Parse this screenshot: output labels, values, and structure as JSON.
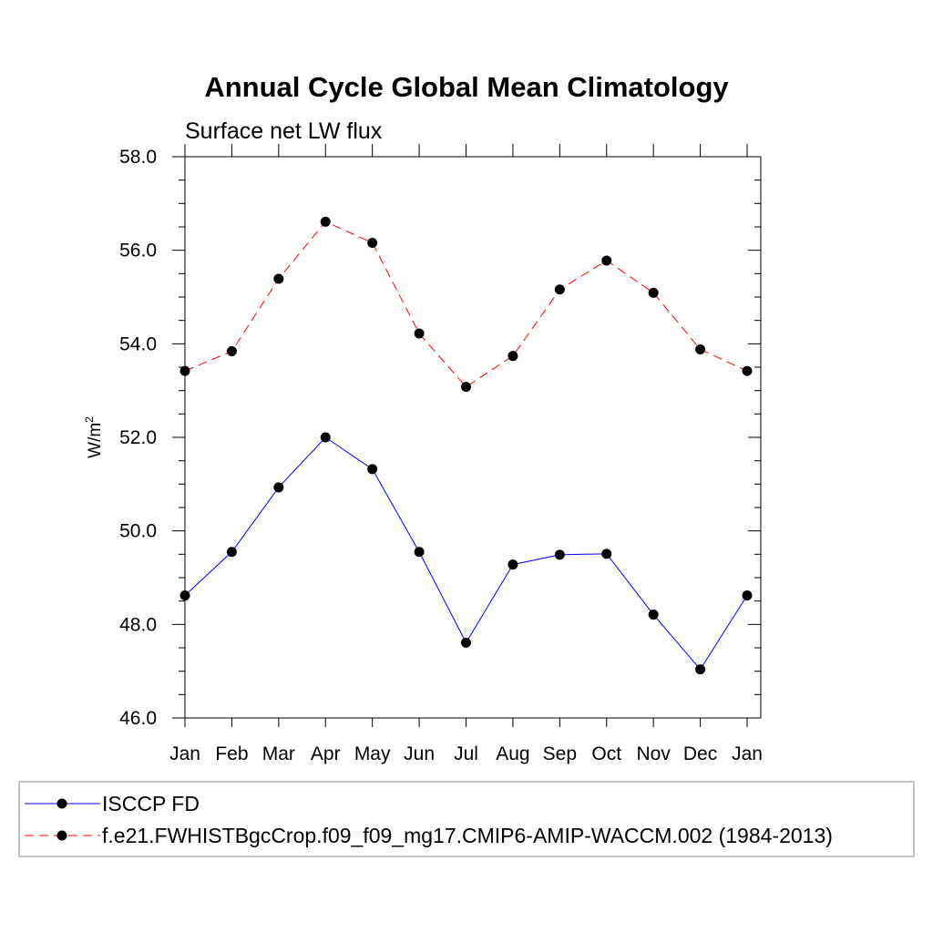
{
  "chart_data": {
    "type": "line",
    "title": "Annual Cycle Global Mean Climatology",
    "subtitle": "Surface net LW flux",
    "xlabel": "",
    "ylabel": "W/m",
    "ylabel_superscript": "2",
    "categories": [
      "Jan",
      "Feb",
      "Mar",
      "Apr",
      "May",
      "Jun",
      "Jul",
      "Aug",
      "Sep",
      "Oct",
      "Nov",
      "Dec",
      "Jan"
    ],
    "ylim": [
      46.0,
      58.0
    ],
    "yticks": [
      "46.0",
      "48.0",
      "50.0",
      "52.0",
      "54.0",
      "56.0",
      "58.0"
    ],
    "grid": false,
    "legend_position": "bottom",
    "series": [
      {
        "name": "ISCCP FD",
        "color": "#0000ff",
        "dash": "solid",
        "values": [
          48.62,
          49.55,
          50.93,
          52.0,
          51.32,
          49.55,
          47.61,
          49.28,
          49.49,
          49.51,
          48.21,
          47.04,
          48.62
        ]
      },
      {
        "name": "f.e21.FWHISTBgcCrop.f09_f09_mg17.CMIP6-AMIP-WACCM.002 (1984-2013)",
        "color": "#ff0000",
        "dash": "dashed",
        "values": [
          53.42,
          53.84,
          55.39,
          56.61,
          56.16,
          54.22,
          53.08,
          53.74,
          55.16,
          55.78,
          55.09,
          53.88,
          53.42
        ]
      }
    ]
  }
}
